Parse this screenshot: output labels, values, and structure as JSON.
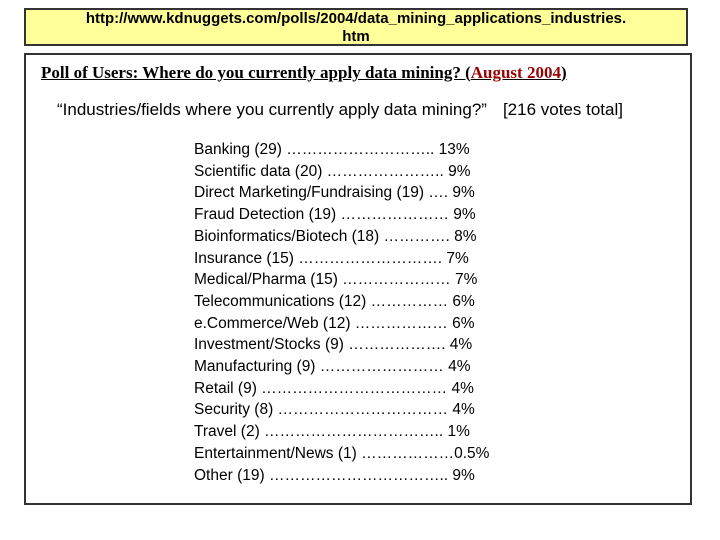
{
  "url_banner": {
    "line1": "http://www.kdnuggets.com/polls/2004/data_mining_applications_industries.",
    "line2": "htm"
  },
  "poll": {
    "title_prefix": "Poll of Users:  Where do you currently apply data mining?  (",
    "title_date": "August 2004",
    "title_suffix": ")",
    "question": "“Industries/fields where you currently apply data mining?”",
    "votes_total": "[216 votes total]",
    "items": [
      "Banking (29) ……………………….. 13%",
      "Scientific data (20) ………………….. 9%",
      "Direct Marketing/Fundraising (19) …. 9%",
      "Fraud Detection (19) ………………… 9%",
      "Bioinformatics/Biotech (18) …………. 8%",
      "Insurance (15) ………………………. 7%",
      "Medical/Pharma (15) ………………… 7%",
      "Telecommunications (12) …………… 6%",
      "e.Commerce/Web (12) ……………… 6%",
      "Investment/Stocks (9) ………………. 4%",
      "Manufacturing (9) …………………… 4%",
      "Retail (9) ……………………………… 4%",
      "Security (8) …………………………… 4%",
      "Travel (2) …………………………….. 1%",
      "Entertainment/News (1) ………………0.5%",
      "Other (19) …………………………….. 9%"
    ]
  }
}
